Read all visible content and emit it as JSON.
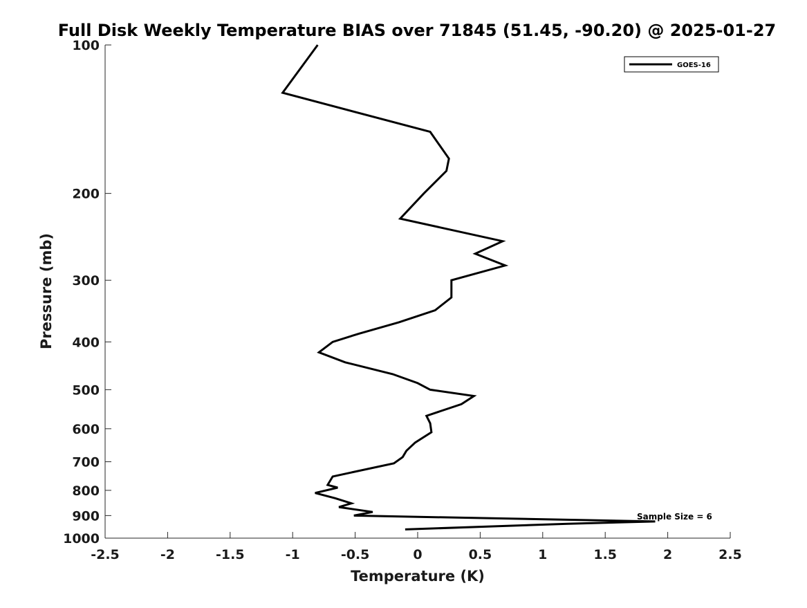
{
  "chart_data": {
    "type": "line",
    "title": "Full Disk Weekly Temperature BIAS over 71845 (51.45, -90.20) @ 2025-01-27",
    "xlabel": "Temperature (K)",
    "ylabel": "Pressure (mb)",
    "xlim": [
      -2.5,
      2.5
    ],
    "ylim": [
      100,
      1000
    ],
    "y_scale": "log",
    "y_reversed": true,
    "grid": false,
    "legend_position": "top-right",
    "xticks": [
      -2.5,
      -2,
      -1.5,
      -1,
      -0.5,
      0,
      0.5,
      1,
      1.5,
      2,
      2.5
    ],
    "xtick_labels": [
      "-2.5",
      "-2",
      "-1.5",
      "-1",
      "-0.5",
      "0",
      "0.5",
      "1",
      "1.5",
      "2",
      "2.5"
    ],
    "yticks": [
      100,
      200,
      300,
      400,
      500,
      600,
      700,
      800,
      900,
      1000
    ],
    "ytick_labels": [
      "100",
      "200",
      "300",
      "400",
      "500",
      "600",
      "700",
      "800",
      "900",
      "1000"
    ],
    "series": [
      {
        "name": "GOES-16",
        "color": "#000000",
        "points": [
          {
            "x": -0.8,
            "p": 100
          },
          {
            "x": -1.08,
            "p": 125
          },
          {
            "x": 0.1,
            "p": 150
          },
          {
            "x": 0.25,
            "p": 170
          },
          {
            "x": 0.23,
            "p": 180
          },
          {
            "x": 0.05,
            "p": 200
          },
          {
            "x": -0.14,
            "p": 225
          },
          {
            "x": 0.68,
            "p": 250
          },
          {
            "x": 0.46,
            "p": 265
          },
          {
            "x": 0.7,
            "p": 280
          },
          {
            "x": 0.27,
            "p": 300
          },
          {
            "x": 0.27,
            "p": 325
          },
          {
            "x": 0.14,
            "p": 345
          },
          {
            "x": -0.15,
            "p": 365
          },
          {
            "x": -0.47,
            "p": 385
          },
          {
            "x": -0.68,
            "p": 400
          },
          {
            "x": -0.79,
            "p": 420
          },
          {
            "x": -0.58,
            "p": 440
          },
          {
            "x": -0.2,
            "p": 465
          },
          {
            "x": 0.0,
            "p": 485
          },
          {
            "x": 0.1,
            "p": 500
          },
          {
            "x": 0.45,
            "p": 515
          },
          {
            "x": 0.35,
            "p": 535
          },
          {
            "x": 0.07,
            "p": 565
          },
          {
            "x": 0.1,
            "p": 585
          },
          {
            "x": 0.11,
            "p": 610
          },
          {
            "x": -0.02,
            "p": 640
          },
          {
            "x": -0.09,
            "p": 665
          },
          {
            "x": -0.12,
            "p": 685
          },
          {
            "x": -0.19,
            "p": 705
          },
          {
            "x": -0.68,
            "p": 750
          },
          {
            "x": -0.72,
            "p": 780
          },
          {
            "x": -0.64,
            "p": 790
          },
          {
            "x": -0.82,
            "p": 810
          },
          {
            "x": -0.66,
            "p": 830
          },
          {
            "x": -0.53,
            "p": 850
          },
          {
            "x": -0.63,
            "p": 865
          },
          {
            "x": -0.36,
            "p": 885
          },
          {
            "x": -0.51,
            "p": 900
          },
          {
            "x": 1.9,
            "p": 925
          },
          {
            "x": 1.2,
            "p": 935
          },
          {
            "x": -0.1,
            "p": 960
          }
        ]
      }
    ],
    "annotation": "Sample Size = 6"
  }
}
